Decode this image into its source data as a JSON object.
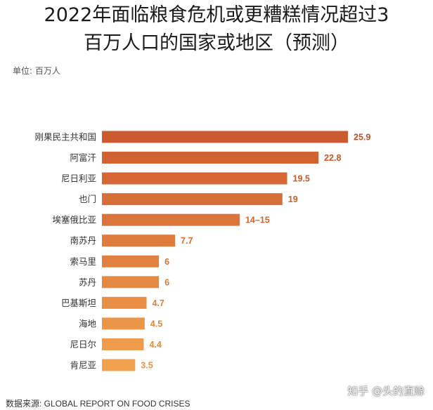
{
  "title_line1": "2022年面临粮食危机或更糟糕情况超过3",
  "title_line2": "百万人口的国家或地区（预测）",
  "unit_label": "单位: 百万人",
  "source": "数据来源: GLOBAL REPORT ON FOOD CRISES",
  "watermark": "知乎 @头的直赊",
  "colors": {
    "bar_top": "#cd5a2e",
    "bar_bottom": "#f2a24e",
    "label_top": "#c24e24",
    "label_bottom": "#e9913a"
  },
  "chart_data": {
    "type": "bar",
    "orientation": "horizontal",
    "title": "2022年面临粮食危机或更糟糕情况超过3百万人口的国家或地区（预测）",
    "ylabel": "单位: 百万人",
    "categories": [
      "刚果民主共和国",
      "阿富汗",
      "尼日利亚",
      "也门",
      "埃塞俄比亚",
      "南苏丹",
      "索马里",
      "苏丹",
      "巴基斯坦",
      "海地",
      "尼日尔",
      "肯尼亚"
    ],
    "values": [
      25.9,
      22.8,
      19.5,
      19,
      14.5,
      7.7,
      6,
      6,
      4.7,
      4.5,
      4.4,
      3.5
    ],
    "value_labels": [
      "25.9",
      "22.8",
      "19.5",
      "19",
      "14–15",
      "7.7",
      "6",
      "6",
      "4.7",
      "4.5",
      "4.4",
      "3.5"
    ],
    "xlim": [
      0,
      25.9
    ],
    "grid": false,
    "legend": "none"
  }
}
